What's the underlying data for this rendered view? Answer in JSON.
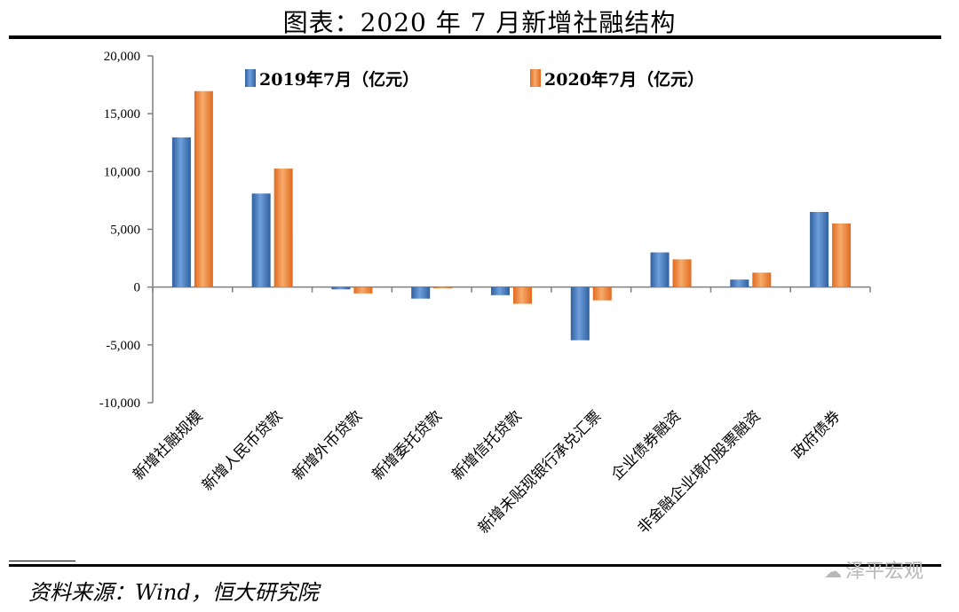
{
  "header": {
    "title": "图表：2020 年 7 月新增社融结构"
  },
  "footer": {
    "source": "资料来源：Wind，恒大研究院",
    "watermark": "泽平宏观"
  },
  "colors": {
    "series_2019": "#4a7fc1",
    "series_2020": "#f08a3c",
    "axis": "#7f7f7f"
  },
  "chart_data": {
    "type": "bar",
    "title": "图表：2020 年 7 月新增社融结构",
    "xlabel": "",
    "ylabel": "",
    "ylim": [
      -10000,
      20000
    ],
    "yticks": [
      20000,
      15000,
      10000,
      5000,
      0,
      -5000,
      -10000
    ],
    "ytick_labels": [
      "20,000",
      "15,000",
      "10,000",
      "5,000",
      "0",
      "-5,000",
      "-10,000"
    ],
    "grid": false,
    "legend_position": "top",
    "categories": [
      "新增社融规模",
      "新增人民币贷款",
      "新增外币贷款",
      "新增委托贷款",
      "新增信托贷款",
      "新增未贴现银行承兑汇票",
      "企业债券融资",
      "非金融企业境内股票融资",
      "政府债券"
    ],
    "series": [
      {
        "name": "2019年7月（亿元）",
        "values": [
          12950,
          8090,
          -200,
          -1000,
          -700,
          -4600,
          3000,
          650,
          6500
        ]
      },
      {
        "name": "2020年7月（亿元）",
        "values": [
          16950,
          10250,
          -550,
          -100,
          -1450,
          -1150,
          2400,
          1250,
          5500
        ]
      }
    ]
  }
}
